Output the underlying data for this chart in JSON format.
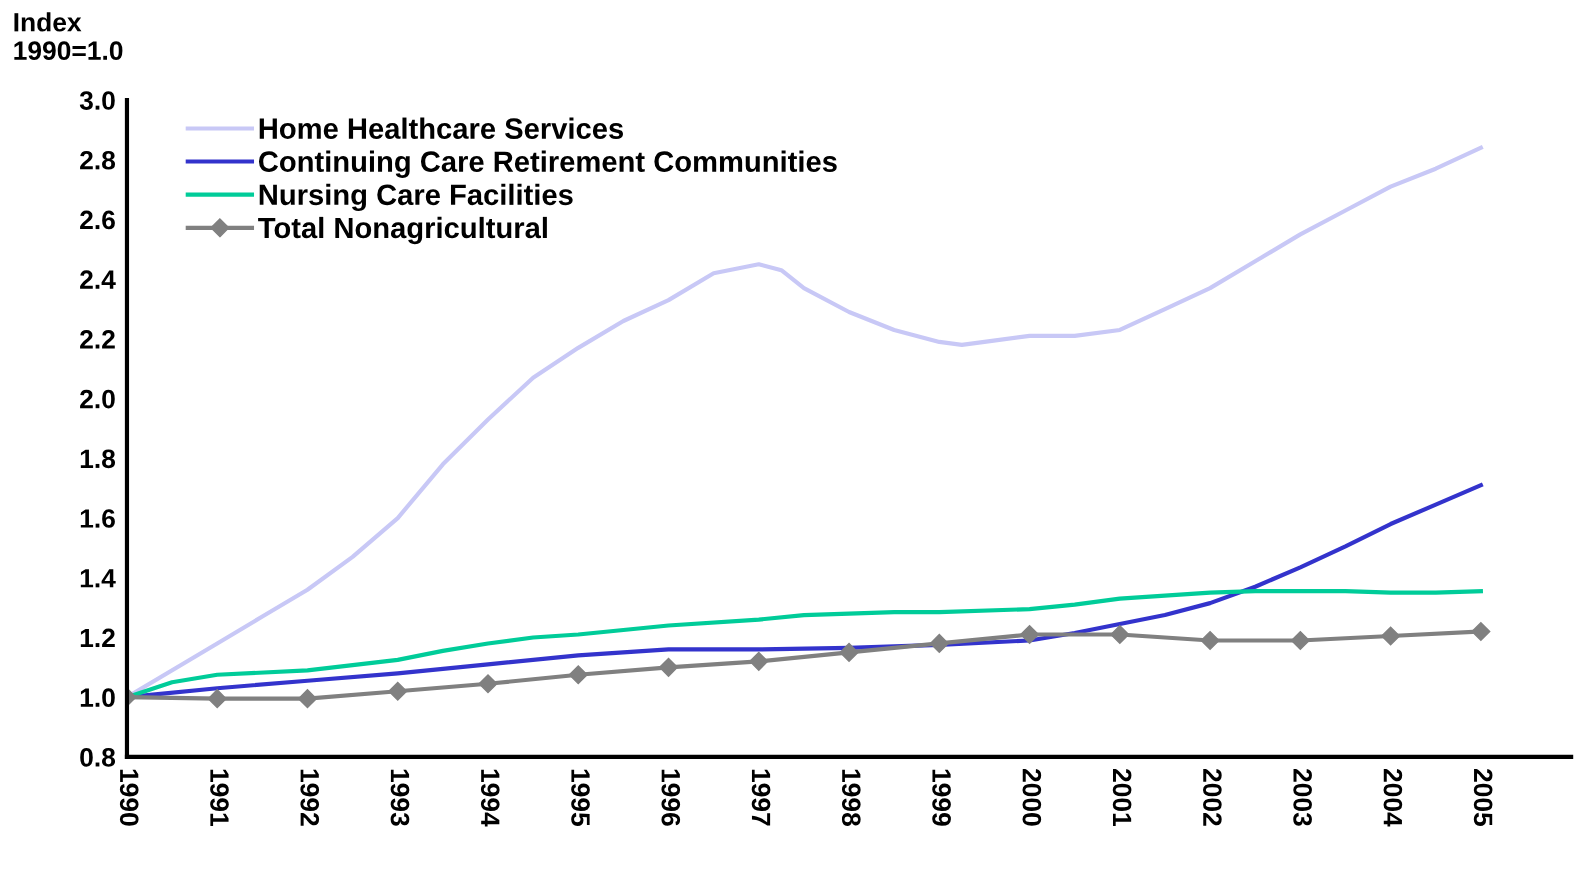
{
  "chart_data": {
    "type": "line",
    "ylabel": "Index\n1990=1.0",
    "series": [
      {
        "name": "Home Healthcare Services",
        "color": "#c8c8f6",
        "marker": "none",
        "x": [
          1990,
          1991,
          1991.5,
          1992,
          1992.5,
          1993,
          1993.5,
          1994,
          1994.5,
          1995,
          1995.5,
          1996,
          1996.5,
          1997,
          1997.25,
          1997.5,
          1998,
          1998.5,
          1999,
          1999.25,
          1999.5,
          2000,
          2000.5,
          2001,
          2001.5,
          2002,
          2002.5,
          2003,
          2003.5,
          2004,
          2004.5,
          2005
        ],
        "values": [
          1.0,
          1.18,
          1.27,
          1.36,
          1.47,
          1.6,
          1.78,
          1.93,
          2.07,
          2.17,
          2.26,
          2.33,
          2.42,
          2.45,
          2.43,
          2.37,
          2.29,
          2.23,
          2.19,
          2.18,
          2.19,
          2.21,
          2.21,
          2.23,
          2.3,
          2.37,
          2.46,
          2.55,
          2.63,
          2.71,
          2.77,
          2.84
        ]
      },
      {
        "name": "Continuing Care Retirement Communities",
        "color": "#3333cc",
        "marker": "none",
        "x": [
          1990,
          1991,
          1992,
          1993,
          1994,
          1995,
          1996,
          1997,
          1998,
          1999,
          2000,
          2000.5,
          2001,
          2001.5,
          2002,
          2002.5,
          2003,
          2003.5,
          2004,
          2004.5,
          2005
        ],
        "values": [
          1.0,
          1.03,
          1.055,
          1.08,
          1.11,
          1.14,
          1.16,
          1.16,
          1.165,
          1.175,
          1.19,
          1.215,
          1.245,
          1.275,
          1.315,
          1.37,
          1.435,
          1.505,
          1.58,
          1.645,
          1.71
        ]
      },
      {
        "name": "Nursing Care Facilities",
        "color": "#00cc99",
        "marker": "none",
        "x": [
          1990,
          1990.5,
          1991,
          1992,
          1993,
          1993.5,
          1994,
          1994.5,
          1995,
          1996,
          1997,
          1997.5,
          1998,
          1998.5,
          1999,
          2000,
          2000.5,
          2001,
          2002,
          2002.5,
          2003,
          2003.5,
          2004,
          2004.5,
          2005
        ],
        "values": [
          1.0,
          1.05,
          1.075,
          1.09,
          1.125,
          1.155,
          1.18,
          1.2,
          1.21,
          1.24,
          1.26,
          1.275,
          1.28,
          1.285,
          1.285,
          1.295,
          1.31,
          1.33,
          1.35,
          1.355,
          1.355,
          1.355,
          1.35,
          1.35,
          1.355
        ]
      },
      {
        "name": "Total Nonagricultural",
        "color": "#808080",
        "marker": "diamond",
        "x": [
          1990,
          1991,
          1992,
          1993,
          1994,
          1995,
          1996,
          1997,
          1998,
          1999,
          2000,
          2001,
          2002,
          2003,
          2004,
          2005
        ],
        "values": [
          1.0,
          0.995,
          0.995,
          1.02,
          1.045,
          1.075,
          1.1,
          1.12,
          1.15,
          1.18,
          1.21,
          1.21,
          1.19,
          1.19,
          1.205,
          1.22
        ]
      }
    ],
    "xlim": [
      1990,
      2006
    ],
    "xticks": [
      1990,
      1991,
      1992,
      1993,
      1994,
      1995,
      1996,
      1997,
      1998,
      1999,
      2000,
      2001,
      2002,
      2003,
      2004,
      2005
    ],
    "ylim": [
      0.8,
      3.0
    ],
    "yticks": [
      {
        "value": 0.8,
        "label": "0.8"
      },
      {
        "value": 1.0,
        "label": "1.0"
      },
      {
        "value": 1.2,
        "label": "1.2"
      },
      {
        "value": 1.4,
        "label": "1.4"
      },
      {
        "value": 1.6,
        "label": "1.6"
      },
      {
        "value": 1.8,
        "label": "1.8"
      },
      {
        "value": 2.0,
        "label": "2.0"
      },
      {
        "value": 2.2,
        "label": "2.2"
      },
      {
        "value": 2.4,
        "label": "2.4"
      },
      {
        "value": 2.6,
        "label": "2.6"
      },
      {
        "value": 2.8,
        "label": "2.8"
      },
      {
        "value": 3.0,
        "label": "3.0"
      }
    ],
    "grid": false,
    "legend": "top left"
  }
}
